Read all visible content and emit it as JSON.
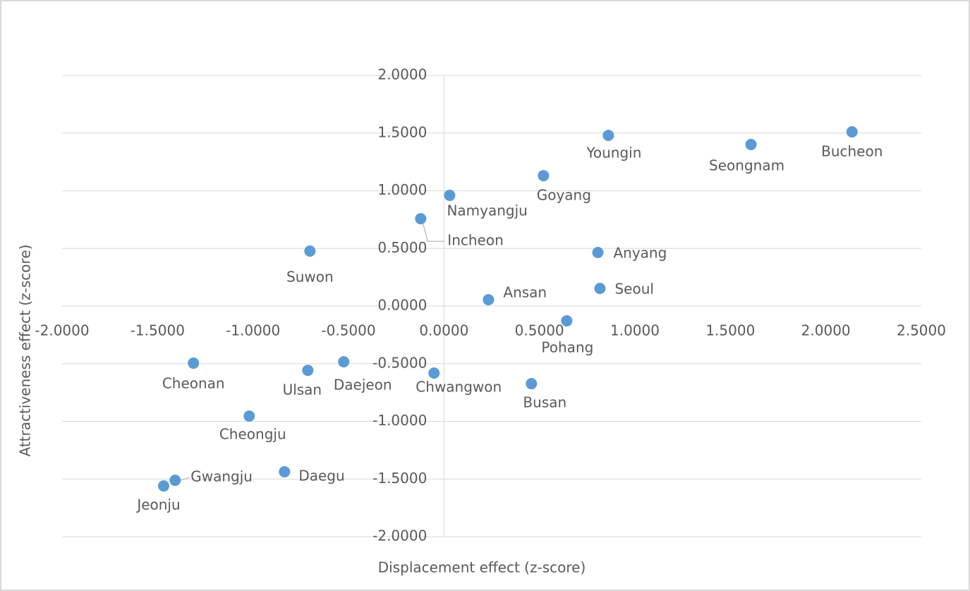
{
  "chart_data": {
    "type": "scatter",
    "x_label": "Displacement effect (z-score)",
    "y_label": "Attractiveness effect (z-score)",
    "labels": [
      "Bucheon",
      "Seongnam",
      "Youngin",
      "Goyang",
      "Namyangju",
      "Incheon",
      "Suwon",
      "Anyang",
      "Seoul",
      "Ansan",
      "Pohang",
      "Cheonan",
      "Ulsan",
      "Daejeon",
      "Chwangwon",
      "Busan",
      "Cheongju",
      "Daegu",
      "Gwangju",
      "Jeonju"
    ],
    "x": [
      2.137,
      1.608,
      0.861,
      0.521,
      0.03,
      -0.122,
      -0.702,
      0.806,
      0.817,
      0.233,
      0.643,
      -1.312,
      -0.713,
      -0.525,
      -0.052,
      0.458,
      -1.02,
      -0.835,
      -1.408,
      -1.468
    ],
    "y": [
      1.511,
      1.401,
      1.48,
      1.131,
      0.96,
      0.758,
      0.477,
      0.465,
      0.153,
      0.055,
      -0.128,
      -0.495,
      -0.557,
      -0.483,
      -0.581,
      -0.673,
      -0.954,
      -1.437,
      -1.511,
      -1.56
    ],
    "color": "#5b9bd5",
    "xlim": [
      -2,
      2.5
    ],
    "ylim": [
      -2,
      2
    ],
    "xticks": [
      {
        "value": -2,
        "label": "-2.0000"
      },
      {
        "value": -1.5,
        "label": "-1.5000"
      },
      {
        "value": -1,
        "label": "-1.0000"
      },
      {
        "value": -0.5,
        "label": "-0.5000"
      },
      {
        "value": 0,
        "label": "0.0000"
      },
      {
        "value": 0.5,
        "label": "0.5000"
      },
      {
        "value": 1,
        "label": "1.0000"
      },
      {
        "value": 1.5,
        "label": "1.5000"
      },
      {
        "value": 2,
        "label": "2.0000"
      },
      {
        "value": 2.5,
        "label": "2.5000"
      }
    ],
    "yticks": [
      {
        "value": -2,
        "label": "-2.0000"
      },
      {
        "value": -1.5,
        "label": "-1.5000"
      },
      {
        "value": -1,
        "label": "-1.0000"
      },
      {
        "value": -0.5,
        "label": "-0.5000"
      },
      {
        "value": 0,
        "label": "0.0000"
      },
      {
        "value": 0.5,
        "label": "0.5000"
      },
      {
        "value": 1,
        "label": "1.0000"
      },
      {
        "value": 1.5,
        "label": "1.5000"
      },
      {
        "value": 2,
        "label": "2.0000"
      }
    ],
    "grid": true
  }
}
